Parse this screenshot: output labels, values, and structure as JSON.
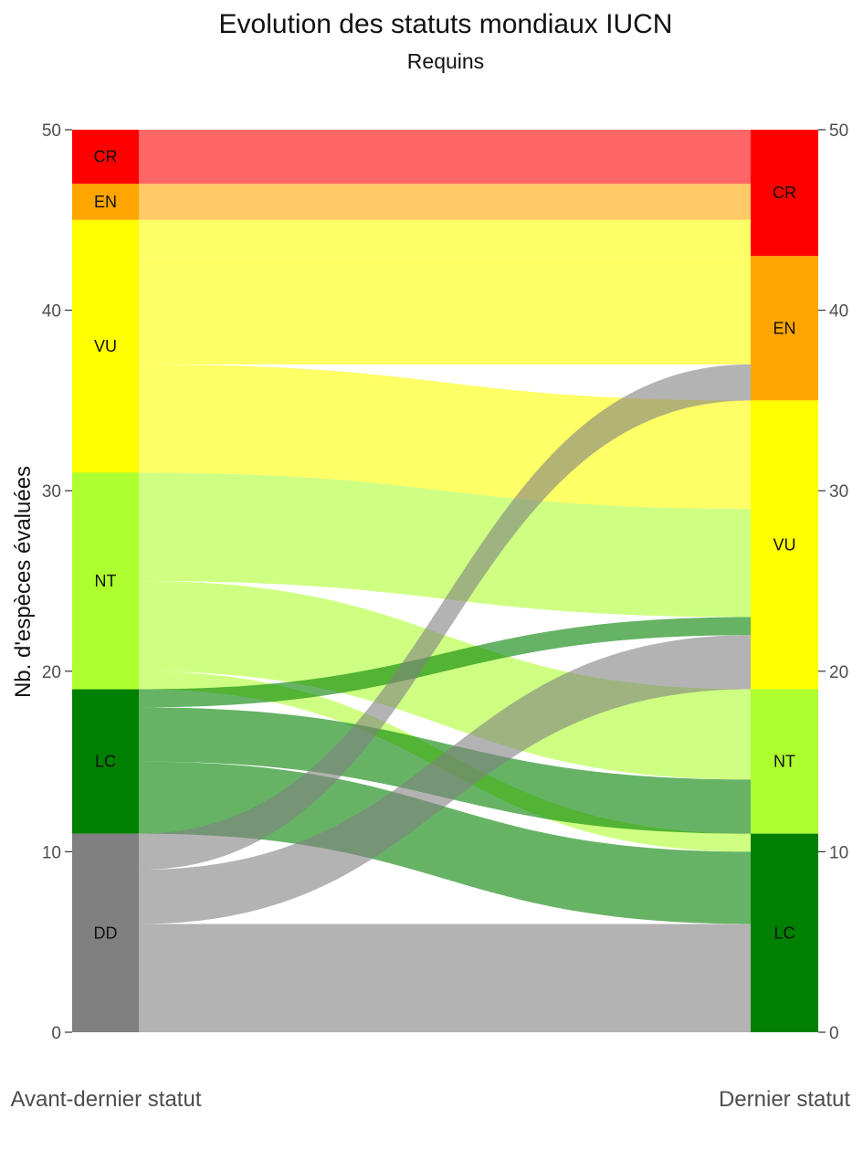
{
  "chart_data": {
    "type": "alluvial",
    "title": "Evolution des statuts mondiaux IUCN",
    "subtitle": "Requins",
    "ylabel": "Nb. d'espèces évaluées",
    "ylim": [
      0,
      50
    ],
    "yticks": [
      0,
      10,
      20,
      30,
      40,
      50
    ],
    "axes": [
      {
        "label": "Avant-dernier statut",
        "categories": [
          {
            "name": "CR",
            "count": 3,
            "color": "#ff0000"
          },
          {
            "name": "EN",
            "count": 2,
            "color": "#ffa500"
          },
          {
            "name": "VU",
            "count": 14,
            "color": "#ffff00"
          },
          {
            "name": "NT",
            "count": 12,
            "color": "#adff2f"
          },
          {
            "name": "LC",
            "count": 8,
            "color": "#008000"
          },
          {
            "name": "DD",
            "count": 11,
            "color": "#808080"
          }
        ]
      },
      {
        "label": "Dernier statut",
        "categories": [
          {
            "name": "CR",
            "count": 7,
            "color": "#ff0000"
          },
          {
            "name": "EN",
            "count": 8,
            "color": "#ffa500"
          },
          {
            "name": "VU",
            "count": 16,
            "color": "#ffff00"
          },
          {
            "name": "NT",
            "count": 8,
            "color": "#adff2f"
          },
          {
            "name": "LC",
            "count": 11,
            "color": "#008000"
          }
        ]
      }
    ],
    "flows": [
      {
        "from": "CR",
        "to": "CR",
        "value": 3
      },
      {
        "from": "EN",
        "to": "CR",
        "value": 2
      },
      {
        "from": "VU",
        "to": "CR",
        "value": 2
      },
      {
        "from": "VU",
        "to": "EN",
        "value": 6
      },
      {
        "from": "VU",
        "to": "VU",
        "value": 6
      },
      {
        "from": "NT",
        "to": "VU",
        "value": 6
      },
      {
        "from": "NT",
        "to": "NT",
        "value": 5
      },
      {
        "from": "NT",
        "to": "LC",
        "value": 1
      },
      {
        "from": "LC",
        "to": "VU",
        "value": 1
      },
      {
        "from": "LC",
        "to": "NT",
        "value": 3
      },
      {
        "from": "LC",
        "to": "LC",
        "value": 4
      },
      {
        "from": "DD",
        "to": "EN",
        "value": 2
      },
      {
        "from": "DD",
        "to": "VU",
        "value": 3
      },
      {
        "from": "DD",
        "to": "LC",
        "value": 6
      }
    ]
  }
}
